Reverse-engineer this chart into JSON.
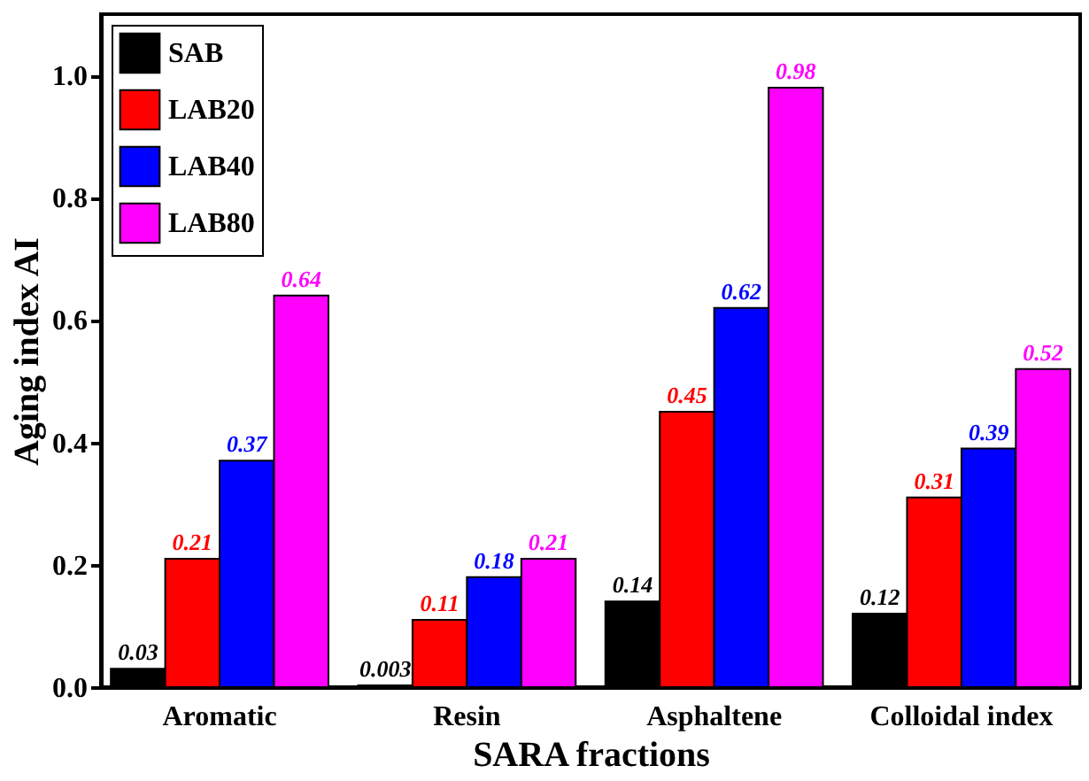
{
  "chart_data": {
    "type": "bar",
    "xlabel": "SARA fractions",
    "ylabel": "Aging index AI",
    "categories": [
      "Aromatic",
      "Resin",
      "Asphaltene",
      "Colloidal index"
    ],
    "series": [
      {
        "name": "SAB",
        "color": "#000000",
        "values": [
          0.03,
          0.003,
          0.14,
          0.12
        ]
      },
      {
        "name": "LAB20",
        "color": "#ff0000",
        "values": [
          0.21,
          0.11,
          0.45,
          0.31
        ]
      },
      {
        "name": "LAB40",
        "color": "#0000ff",
        "values": [
          0.37,
          0.18,
          0.62,
          0.39
        ]
      },
      {
        "name": "LAB80",
        "color": "#ff00ff",
        "values": [
          0.64,
          0.21,
          0.98,
          0.52
        ]
      }
    ],
    "ylim": [
      0,
      1.1
    ],
    "yticks": [
      {
        "value": 0,
        "label": "0.0"
      },
      0.2,
      0.4,
      0.6,
      0.8,
      {
        "value": 1,
        "label": "1.0"
      }
    ],
    "data_labels": true,
    "legend": "top left",
    "grid": false
  }
}
